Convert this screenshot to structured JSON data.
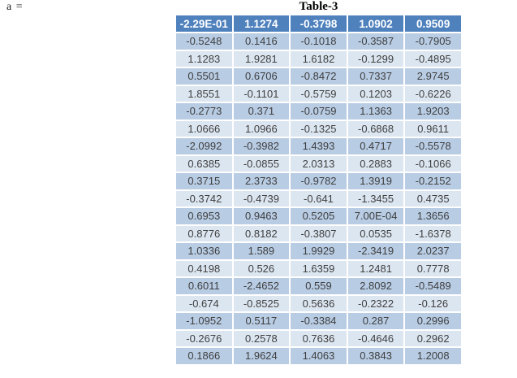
{
  "colors": {
    "header_bg": "#4f81bd",
    "header_text": "#ffffff",
    "row_odd_bg": "#b8cce4",
    "row_even_bg": "#dce6f1",
    "cell_text": "#3f3f3f",
    "title_text": "#000000"
  },
  "chart_data": {
    "type": "table",
    "title": "Table-3",
    "variable_label": "a =",
    "header": [
      "-2.29E-01",
      "1.1274",
      "-0.3798",
      "1.0902",
      "0.9509"
    ],
    "rows": [
      [
        "-0.5248",
        "0.1416",
        "-0.1018",
        "-0.3587",
        "-0.7905"
      ],
      [
        "1.1283",
        "1.9281",
        "1.6182",
        "-0.1299",
        "-0.4895"
      ],
      [
        "0.5501",
        "0.6706",
        "-0.8472",
        "0.7337",
        "2.9745"
      ],
      [
        "1.8551",
        "-0.1101",
        "-0.5759",
        "0.1203",
        "-0.6226"
      ],
      [
        "-0.2773",
        "0.371",
        "-0.0759",
        "1.1363",
        "1.9203"
      ],
      [
        "1.0666",
        "1.0966",
        "-0.1325",
        "-0.6868",
        "0.9611"
      ],
      [
        "-2.0992",
        "-0.3982",
        "1.4393",
        "0.4717",
        "-0.5578"
      ],
      [
        "0.6385",
        "-0.0855",
        "2.0313",
        "0.2883",
        "-0.1066"
      ],
      [
        "0.3715",
        "2.3733",
        "-0.9782",
        "1.3919",
        "-0.2152"
      ],
      [
        "-0.3742",
        "-0.4739",
        "-0.641",
        "-1.3455",
        "0.4735"
      ],
      [
        "0.6953",
        "0.9463",
        "0.5205",
        "7.00E-04",
        "1.3656"
      ],
      [
        "0.8776",
        "0.8182",
        "-0.3807",
        "0.0535",
        "-1.6378"
      ],
      [
        "1.0336",
        "1.589",
        "1.9929",
        "-2.3419",
        "2.0237"
      ],
      [
        "0.4198",
        "0.526",
        "1.6359",
        "1.2481",
        "0.7778"
      ],
      [
        "0.6011",
        "-2.4652",
        "0.559",
        "2.8092",
        "-0.5489"
      ],
      [
        "-0.674",
        "-0.8525",
        "0.5636",
        "-0.2322",
        "-0.126"
      ],
      [
        "-1.0952",
        "0.5117",
        "-0.3384",
        "0.287",
        "0.2996"
      ],
      [
        "-0.2676",
        "0.2578",
        "0.7636",
        "-0.4646",
        "0.2962"
      ],
      [
        "0.1866",
        "1.9624",
        "1.4063",
        "0.3843",
        "1.2008"
      ]
    ]
  }
}
